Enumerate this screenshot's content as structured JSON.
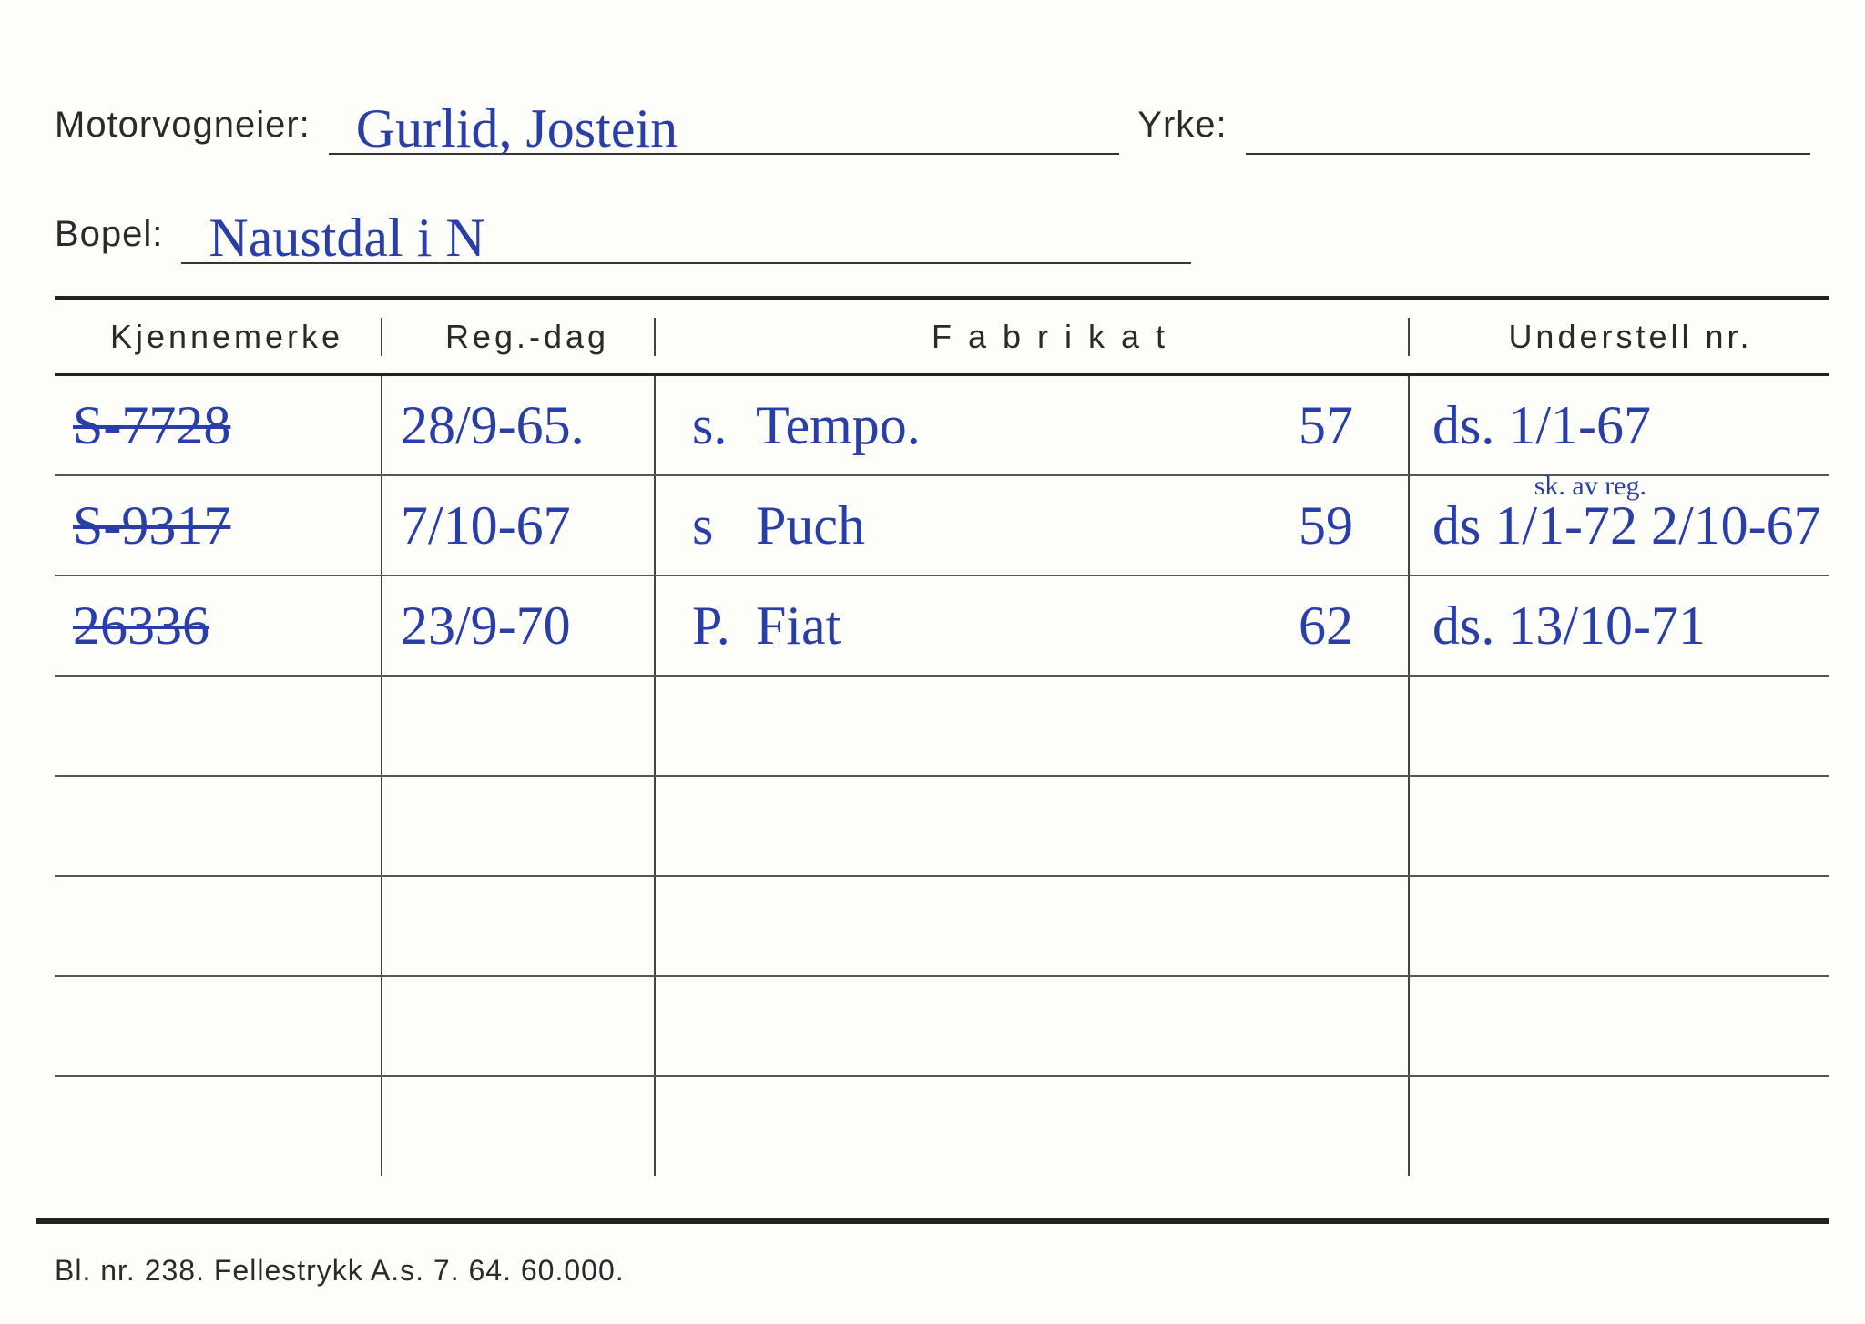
{
  "colors": {
    "paper": "#fdfdf9",
    "print": "#2a2a2a",
    "ink": "#2a3ea8",
    "rule": "#222222"
  },
  "header": {
    "owner_label": "Motorvogneier:",
    "owner_value": "Gurlid, Jostein",
    "occupation_label": "Yrke:",
    "occupation_value": "",
    "residence_label": "Bopel:",
    "residence_value": "Naustdal i N"
  },
  "columns": {
    "kjennemerke": "Kjennemerke",
    "reg_dag": "Reg.-dag",
    "fabrikat": "F a b r i k a t",
    "understell": "Understell nr."
  },
  "rows": [
    {
      "kjennemerke": "S-7728",
      "kjennemerke_struck": true,
      "reg_dag": "28/9-65.",
      "fabrikat_prefix": "s.",
      "fabrikat": "Tempo.",
      "fabrikat_year": "57",
      "understell": "ds.   1/1-67",
      "understell_note": ""
    },
    {
      "kjennemerke": "S-9317",
      "kjennemerke_struck": true,
      "reg_dag": "7/10-67",
      "fabrikat_prefix": "s",
      "fabrikat": "Puch",
      "fabrikat_year": "59",
      "understell": "ds 1/1-72  2/10-67",
      "understell_note": "sk. av reg."
    },
    {
      "kjennemerke": "26336",
      "kjennemerke_struck": true,
      "reg_dag": "23/9-70",
      "fabrikat_prefix": "P.",
      "fabrikat": "Fiat",
      "fabrikat_year": "62",
      "understell": "ds.   13/10-71",
      "understell_note": ""
    }
  ],
  "blank_rows": 5,
  "footer": "Bl. nr. 238.  Fellestrykk A.s. 7. 64.  60.000."
}
